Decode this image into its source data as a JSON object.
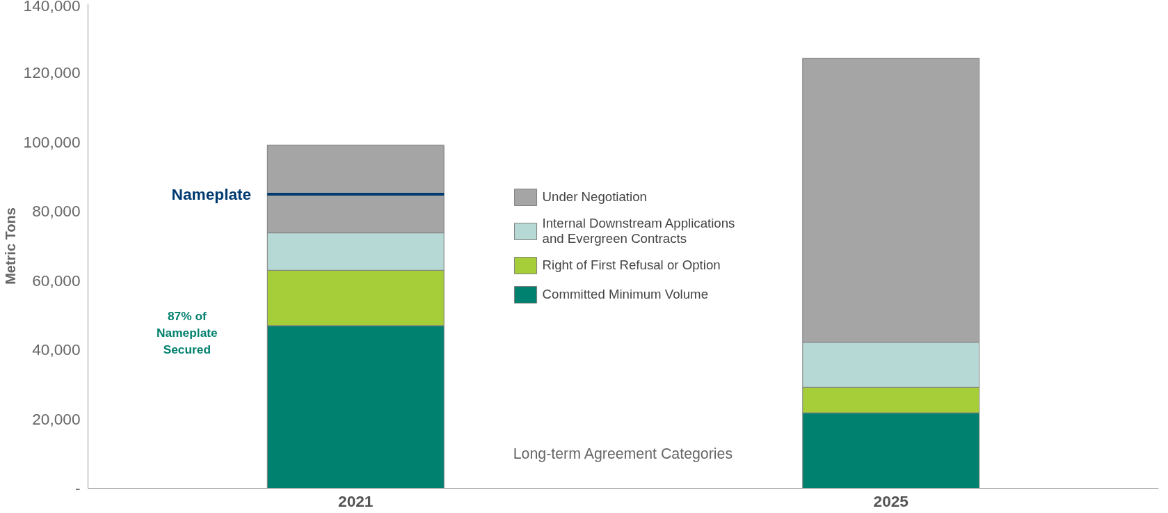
{
  "chart_data": {
    "type": "bar",
    "stacked": true,
    "categories": [
      "2021",
      "2025"
    ],
    "ylabel": "Metric Tons",
    "series": [
      {
        "name": "Committed Minimum Volume",
        "color": "#00806e",
        "values": [
          47000,
          21800
        ]
      },
      {
        "name": "Right of First Refusal or Option",
        "color": "#a6ce39",
        "values": [
          16000,
          7400
        ]
      },
      {
        "name": "Internal Downstream Applications and Evergreen Contracts",
        "color": "#b7d9d5",
        "values": [
          10800,
          13000
        ]
      },
      {
        "name": "Under Negotiation",
        "color": "#a5a5a5",
        "values": [
          25400,
          82100
        ]
      }
    ],
    "ylim": [
      0,
      140000
    ],
    "yticks": [
      {
        "value": 0,
        "label": "-"
      },
      {
        "value": 20000,
        "label": "20,000"
      },
      {
        "value": 40000,
        "label": "40,000"
      },
      {
        "value": 60000,
        "label": "60,000"
      },
      {
        "value": 80000,
        "label": "80,000"
      },
      {
        "value": 100000,
        "label": "100,000"
      },
      {
        "value": 120000,
        "label": "120,000"
      },
      {
        "value": 140000,
        "label": "140,000"
      }
    ],
    "ref_lines": [
      {
        "axis": "y",
        "value": 85000,
        "label": "Nameplate",
        "color": "#003a70"
      }
    ],
    "annotations": [
      "87% of Nameplate Secured",
      "Long-term Agreement Categories"
    ],
    "legend": "center",
    "grid": false
  }
}
